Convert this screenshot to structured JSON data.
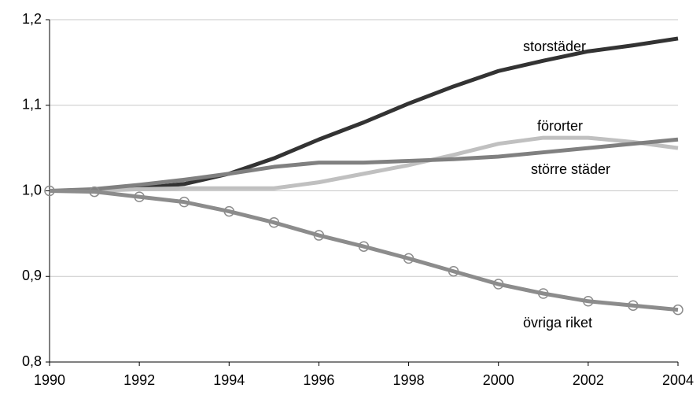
{
  "chart_data": {
    "type": "line",
    "x": [
      1990,
      1991,
      1992,
      1993,
      1994,
      1995,
      1996,
      1997,
      1998,
      1999,
      2000,
      2001,
      2002,
      2003,
      2004
    ],
    "xlim": [
      1990,
      2004
    ],
    "xticks": [
      1990,
      1992,
      1994,
      1996,
      1998,
      2000,
      2002,
      2004
    ],
    "ylim": [
      0.8,
      1.2
    ],
    "yticks": [
      {
        "value": 0.8,
        "label": "0,8"
      },
      {
        "value": 0.9,
        "label": "0,9"
      },
      {
        "value": 1.0,
        "label": "1,0"
      },
      {
        "value": 1.1,
        "label": "1,1"
      },
      {
        "value": 1.2,
        "label": "1,2"
      }
    ],
    "grid": true,
    "series": [
      {
        "name": "storstäder",
        "color": "#333333",
        "values": [
          1.0,
          1.0,
          1.003,
          1.008,
          1.02,
          1.038,
          1.06,
          1.08,
          1.102,
          1.122,
          1.14,
          1.152,
          1.163,
          1.17,
          1.178
        ]
      },
      {
        "name": "förorter",
        "color": "#c0c0c0",
        "values": [
          1.0,
          1.0,
          1.002,
          1.003,
          1.003,
          1.003,
          1.01,
          1.02,
          1.03,
          1.042,
          1.055,
          1.062,
          1.062,
          1.057,
          1.05
        ]
      },
      {
        "name": "större städer",
        "color": "#808080",
        "values": [
          1.0,
          1.002,
          1.007,
          1.013,
          1.02,
          1.028,
          1.033,
          1.033,
          1.035,
          1.037,
          1.04,
          1.045,
          1.05,
          1.055,
          1.06
        ]
      },
      {
        "name": "övriga riket",
        "color": "#8c8c8c",
        "marker": "circle",
        "values": [
          1.0,
          0.999,
          0.993,
          0.987,
          0.976,
          0.963,
          0.948,
          0.935,
          0.921,
          0.906,
          0.891,
          0.88,
          0.871,
          0.866,
          0.861
        ]
      }
    ]
  }
}
